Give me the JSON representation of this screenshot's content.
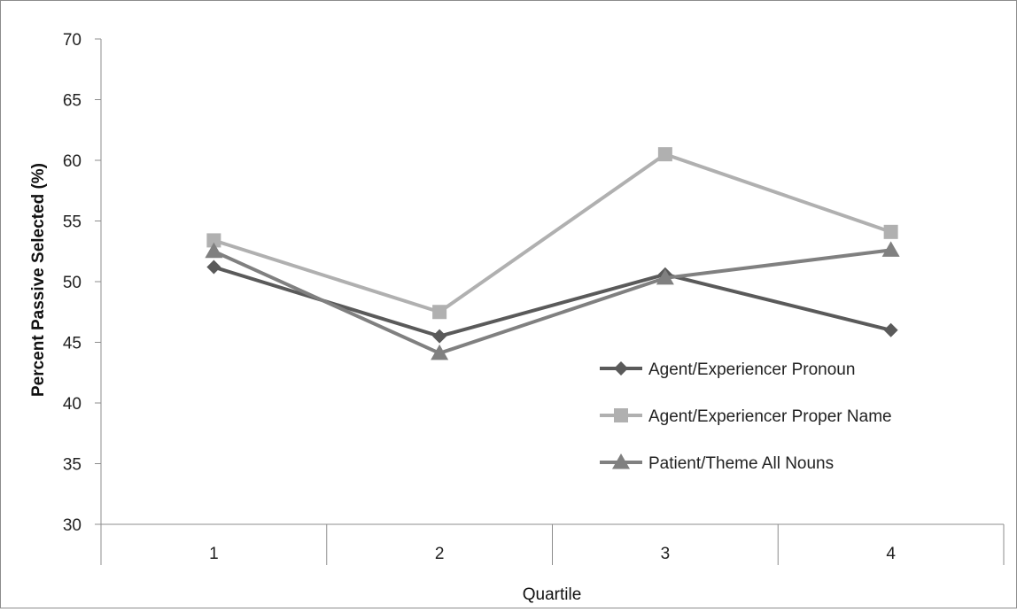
{
  "chart_data": {
    "type": "line",
    "title": "",
    "xlabel": "Quartile",
    "ylabel": "Percent Passive Selected (%)",
    "categories": [
      "1",
      "2",
      "3",
      "4"
    ],
    "ylim": [
      30,
      70
    ],
    "yticks": [
      30,
      35,
      40,
      45,
      50,
      55,
      60,
      65,
      70
    ],
    "grid": false,
    "legend_position": "right",
    "series": [
      {
        "name": "Agent/Experiencer Pronoun",
        "values": [
          51.2,
          45.5,
          50.6,
          46.0
        ],
        "color": "#5a5a5a",
        "marker": "diamond"
      },
      {
        "name": "Agent/Experiencer Proper Name",
        "values": [
          53.4,
          47.5,
          60.5,
          54.1
        ],
        "color": "#b0b0b0",
        "marker": "square"
      },
      {
        "name": "Patient/Theme All Nouns",
        "values": [
          52.5,
          44.1,
          50.3,
          52.6
        ],
        "color": "#808080",
        "marker": "triangle"
      }
    ]
  }
}
